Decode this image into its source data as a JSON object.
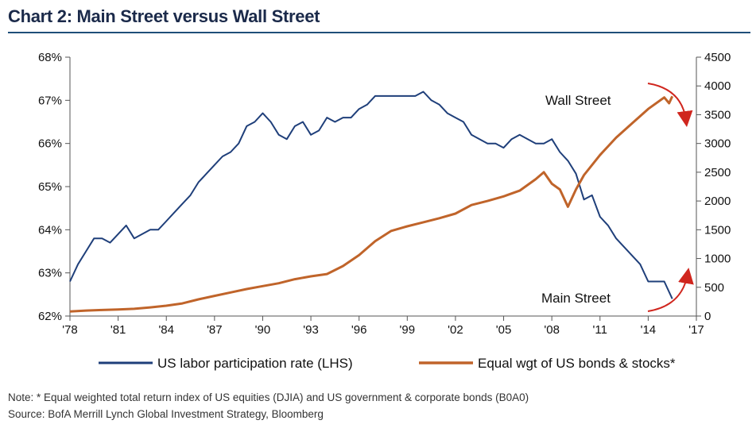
{
  "title": "Chart 2: Main Street versus Wall Street",
  "note": "Note: * Equal weighted total return index of US equities (DJIA) and US government & corporate bonds (B0A0)",
  "source": "Source: BofA Merrill Lynch Global Investment Strategy, Bloomberg",
  "colors": {
    "title": "#1b2a4a",
    "rule": "#1f4e79",
    "main_street": "#1f3f7a",
    "wall_street": "#c0642a",
    "arrow": "#d0261e"
  },
  "chart_data": {
    "type": "line",
    "x_ticks": [
      "'78",
      "'81",
      "'84",
      "'87",
      "'90",
      "'93",
      "'96",
      "'99",
      "'02",
      "'05",
      "'08",
      "'11",
      "'14",
      "'17"
    ],
    "xlim": [
      1978,
      2017
    ],
    "ylim_left": [
      62,
      68
    ],
    "ylim_right": [
      0,
      4500
    ],
    "y_ticks_left": [
      "62%",
      "63%",
      "64%",
      "65%",
      "66%",
      "67%",
      "68%"
    ],
    "y_ticks_right": [
      "0",
      "500",
      "1000",
      "1500",
      "2000",
      "2500",
      "3000",
      "3500",
      "4000",
      "4500"
    ],
    "series": [
      {
        "name": "US labor participation rate (LHS)",
        "axis": "left",
        "x": [
          1978.0,
          1978.5,
          1979.0,
          1979.5,
          1980.0,
          1980.5,
          1981.0,
          1981.5,
          1982.0,
          1982.5,
          1983.0,
          1983.5,
          1984.0,
          1984.5,
          1985.0,
          1985.5,
          1986.0,
          1986.5,
          1987.0,
          1987.5,
          1988.0,
          1988.5,
          1989.0,
          1989.5,
          1990.0,
          1990.5,
          1991.0,
          1991.5,
          1992.0,
          1992.5,
          1993.0,
          1993.5,
          1994.0,
          1994.5,
          1995.0,
          1995.5,
          1996.0,
          1996.5,
          1997.0,
          1997.5,
          1998.0,
          1998.5,
          1999.0,
          1999.5,
          2000.0,
          2000.5,
          2001.0,
          2001.5,
          2002.0,
          2002.5,
          2003.0,
          2003.5,
          2004.0,
          2004.5,
          2005.0,
          2005.5,
          2006.0,
          2006.5,
          2007.0,
          2007.5,
          2008.0,
          2008.5,
          2009.0,
          2009.5,
          2010.0,
          2010.5,
          2011.0,
          2011.5,
          2012.0,
          2012.5,
          2013.0,
          2013.5,
          2014.0,
          2014.5,
          2015.0,
          2015.5
        ],
        "values": [
          62.8,
          63.2,
          63.5,
          63.8,
          63.8,
          63.7,
          63.9,
          64.1,
          63.8,
          63.9,
          64.0,
          64.0,
          64.2,
          64.4,
          64.6,
          64.8,
          65.1,
          65.3,
          65.5,
          65.7,
          65.8,
          66.0,
          66.4,
          66.5,
          66.7,
          66.5,
          66.2,
          66.1,
          66.4,
          66.5,
          66.2,
          66.3,
          66.6,
          66.5,
          66.6,
          66.6,
          66.8,
          66.9,
          67.1,
          67.1,
          67.1,
          67.1,
          67.1,
          67.1,
          67.2,
          67.0,
          66.9,
          66.7,
          66.6,
          66.5,
          66.2,
          66.1,
          66.0,
          66.0,
          65.9,
          66.1,
          66.2,
          66.1,
          66.0,
          66.0,
          66.1,
          65.8,
          65.6,
          65.3,
          64.7,
          64.8,
          64.3,
          64.1,
          63.8,
          63.6,
          63.4,
          63.2,
          62.8,
          62.8,
          62.8,
          62.4
        ]
      },
      {
        "name": "Equal wgt of US bonds & stocks*",
        "axis": "right",
        "x": [
          1978.0,
          1979.0,
          1980.0,
          1981.0,
          1982.0,
          1983.0,
          1984.0,
          1985.0,
          1986.0,
          1987.0,
          1988.0,
          1989.0,
          1990.0,
          1991.0,
          1992.0,
          1993.0,
          1994.0,
          1995.0,
          1996.0,
          1997.0,
          1998.0,
          1999.0,
          2000.0,
          2001.0,
          2002.0,
          2003.0,
          2004.0,
          2005.0,
          2006.0,
          2007.0,
          2007.5,
          2008.0,
          2008.5,
          2009.0,
          2009.5,
          2010.0,
          2011.0,
          2012.0,
          2013.0,
          2014.0,
          2015.0,
          2015.3,
          2015.5
        ],
        "values": [
          80,
          95,
          105,
          115,
          125,
          150,
          180,
          220,
          290,
          350,
          410,
          470,
          520,
          570,
          640,
          690,
          730,
          870,
          1060,
          1300,
          1480,
          1560,
          1630,
          1700,
          1780,
          1930,
          2000,
          2080,
          2180,
          2380,
          2500,
          2300,
          2200,
          1900,
          2200,
          2450,
          2800,
          3100,
          3350,
          3600,
          3800,
          3700,
          3820
        ]
      }
    ],
    "annotations": [
      "Wall Street",
      "Main Street"
    ]
  }
}
